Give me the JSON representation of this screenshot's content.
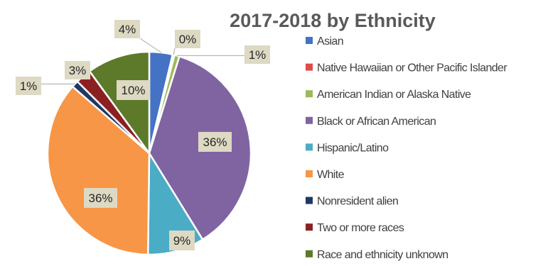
{
  "chart_data": {
    "type": "pie",
    "title": "2017-2018 by Ethnicity",
    "categories": [
      "Asian",
      "Native Hawaiian or Other Pacific Islander",
      "American Indian or Alaska Native",
      "Black or African American",
      "Hispanic/Latino",
      "White",
      "Nonresident alien",
      "Two or more races",
      "Race and ethnicity unknown"
    ],
    "values": [
      3.7,
      0.3,
      0.8,
      36.4,
      9.0,
      36.2,
      1.1,
      2.5,
      10.0
    ],
    "data_labels": [
      "4%",
      "0%",
      "1%",
      "36%",
      "9%",
      "36%",
      "1%",
      "3%",
      "10%"
    ],
    "colors": [
      "#4472C4",
      "#E04A48",
      "#9BBB59",
      "#8064A2",
      "#4BACC6",
      "#F79646",
      "#1F3864",
      "#8B2023",
      "#5C7A29"
    ],
    "legend_position": "right",
    "start_angle": "12 o'clock, clockwise"
  }
}
